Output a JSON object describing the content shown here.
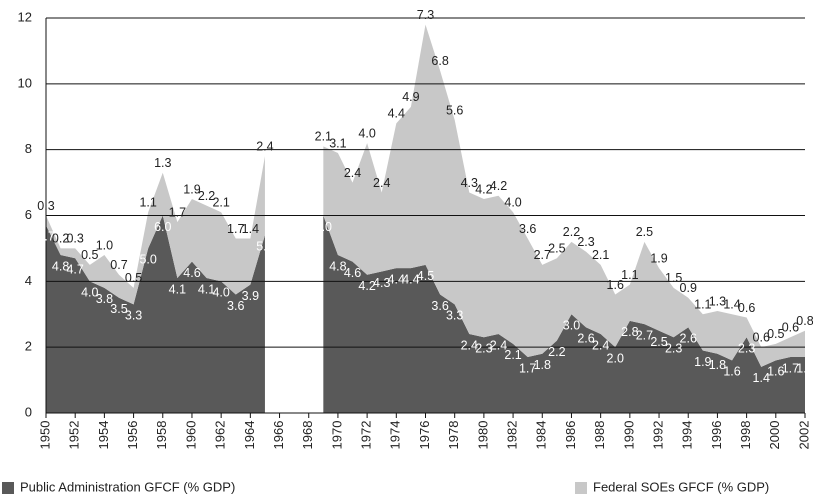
{
  "chart_data": {
    "type": "stacked_area",
    "x": [
      1950,
      1951,
      1952,
      1953,
      1954,
      1955,
      1956,
      1957,
      1958,
      1959,
      1960,
      1961,
      1962,
      1963,
      1964,
      1965,
      1966,
      1967,
      1968,
      1969,
      1970,
      1971,
      1972,
      1973,
      1974,
      1975,
      1976,
      1977,
      1978,
      1979,
      1980,
      1981,
      1982,
      1983,
      1984,
      1985,
      1986,
      1987,
      1988,
      1989,
      1990,
      1991,
      1992,
      1993,
      1994,
      1995,
      1996,
      1997,
      1998,
      1999,
      2000,
      2001,
      2002
    ],
    "series": [
      {
        "name": "Public Administration GFCF (% GDP)",
        "color": "#595959",
        "label_color": "#ffffff",
        "values": [
          5.7,
          4.8,
          4.7,
          4.0,
          3.8,
          3.5,
          3.3,
          5.0,
          6.0,
          4.1,
          4.6,
          4.1,
          4.0,
          3.6,
          3.9,
          5.4,
          null,
          null,
          null,
          6.0,
          4.8,
          4.6,
          4.2,
          4.3,
          4.4,
          4.4,
          4.5,
          3.6,
          3.3,
          2.4,
          2.3,
          2.4,
          2.1,
          1.7,
          1.8,
          2.2,
          3.0,
          2.6,
          2.4,
          2.0,
          2.8,
          2.7,
          2.5,
          2.3,
          2.6,
          1.9,
          1.8,
          1.6,
          2.3,
          1.4,
          1.6,
          1.7,
          1.7
        ],
        "value_labels": [
          "5.7",
          "4.8",
          "4.7",
          "4.0",
          "3.8",
          "3.5",
          "3.3",
          "5.0",
          "6.0",
          "4.1",
          "4.6",
          "4.1",
          "4.0",
          "3.6",
          "3.9",
          "5.4",
          null,
          null,
          null,
          "6.0",
          "4.8",
          "4.6",
          "4.2",
          "4.3",
          "4.4",
          "4.4",
          "4.5",
          "3.6",
          "3.3",
          "2.4",
          "2.3",
          "2.4",
          "2.1",
          "1.7",
          "1.8",
          "2.2",
          "3.0",
          "2.6",
          "2.4",
          "2.0",
          "2.8",
          "2.7",
          "2.5",
          "2.3",
          "2.6",
          "1.9",
          "1.8",
          "1.6",
          "2.3",
          "1.4",
          "1.6",
          "1.7",
          "1.7"
        ]
      },
      {
        "name": "Federal SOEs GFCF (% GDP)",
        "color": "#c8c8c8",
        "label_color": "#222222",
        "values": [
          0.3,
          0.2,
          0.3,
          0.5,
          1.0,
          0.7,
          0.5,
          1.1,
          1.3,
          1.7,
          1.9,
          2.2,
          2.1,
          1.7,
          1.4,
          2.4,
          null,
          null,
          null,
          2.1,
          3.1,
          2.4,
          4.0,
          2.4,
          4.4,
          4.9,
          7.3,
          6.8,
          5.6,
          4.3,
          4.2,
          4.2,
          4.0,
          3.6,
          2.7,
          2.5,
          2.2,
          2.3,
          2.1,
          1.6,
          1.1,
          2.5,
          1.9,
          1.5,
          0.9,
          1.1,
          1.3,
          1.4,
          0.6,
          0.6,
          0.5,
          0.6,
          0.8
        ],
        "value_labels": [
          "0.3",
          "0.2",
          "0.3",
          "0.5",
          "1.0",
          "0.7",
          "0.5",
          "1.1",
          "1.3",
          "1.7",
          "1.9",
          "2.2",
          "2.1",
          "1.7",
          "1.4",
          "2.4",
          null,
          null,
          null,
          "2.1",
          "3.1",
          "2.4",
          "4.0",
          "2.4",
          "4.4",
          "4.9",
          "7.3",
          "6.8",
          "5.6",
          "4.3",
          "4.2",
          "4.2",
          "4.0",
          "3.6",
          "2.7",
          "2.5",
          "2.2",
          "2.3",
          "2.1",
          "1.6",
          "1.1",
          "2.5",
          "1.9",
          "1.5",
          "0.9",
          "1.1",
          "1.3",
          "1.4",
          "0.6",
          "0.6",
          "0.5",
          "0.6",
          "0.8"
        ]
      }
    ],
    "xlim": [
      1950,
      2002
    ],
    "xticks": [
      1950,
      1952,
      1954,
      1956,
      1958,
      1960,
      1962,
      1964,
      1966,
      1968,
      1970,
      1972,
      1974,
      1976,
      1978,
      1980,
      1982,
      1984,
      1986,
      1988,
      1990,
      1992,
      1994,
      1996,
      1998,
      2000,
      2002
    ],
    "ylim": [
      0,
      12
    ],
    "yticks": [
      0,
      2,
      4,
      6,
      8,
      10,
      12
    ],
    "grid": true
  }
}
